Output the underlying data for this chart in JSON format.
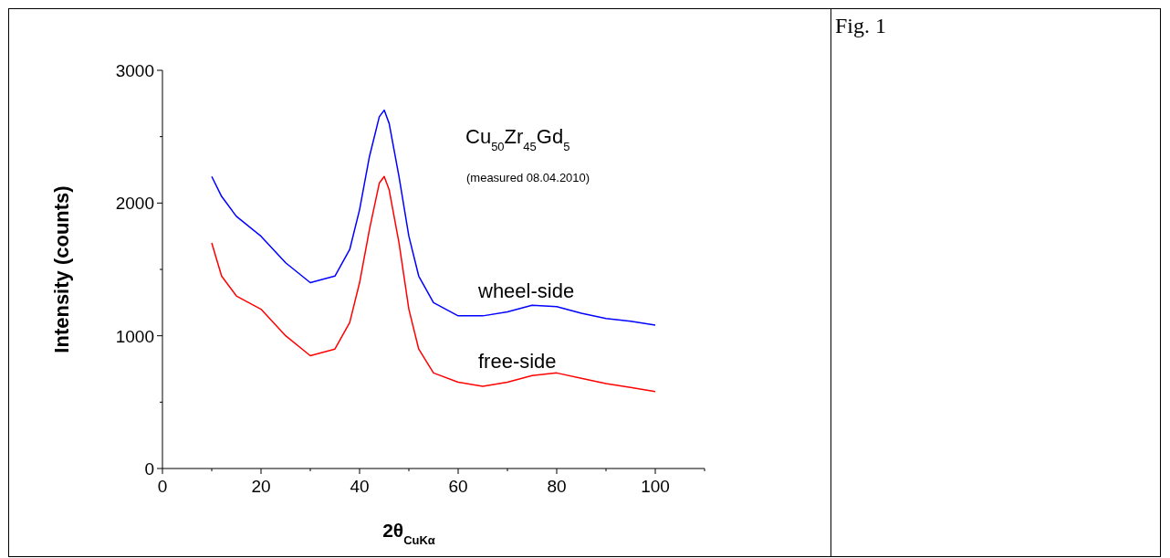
{
  "chart_data": {
    "type": "line",
    "xlabel": "2θ$_{CuKα}$",
    "ylabel": "Intensity (counts)",
    "xlim": [
      0,
      110
    ],
    "xticks": [
      0,
      20,
      40,
      60,
      80,
      100
    ],
    "ylim": [
      0,
      3000
    ],
    "yticks": [
      0,
      1000,
      2000,
      3000
    ],
    "grid": false,
    "line_style": "solid",
    "marker": "none",
    "x": [
      10,
      12,
      15,
      20,
      25,
      30,
      35,
      38,
      40,
      42,
      44,
      45,
      46,
      48,
      50,
      52,
      55,
      60,
      65,
      70,
      75,
      80,
      85,
      90,
      95,
      100
    ],
    "series": [
      {
        "name": "wheel-side",
        "color": "#0000ff",
        "values": [
          2200,
          2050,
          1900,
          1750,
          1550,
          1400,
          1450,
          1650,
          1950,
          2350,
          2650,
          2700,
          2600,
          2200,
          1750,
          1450,
          1250,
          1150,
          1150,
          1180,
          1230,
          1220,
          1170,
          1130,
          1110,
          1080
        ]
      },
      {
        "name": "free-side",
        "color": "#ff0000",
        "values": [
          1700,
          1450,
          1300,
          1200,
          1000,
          850,
          900,
          1100,
          1400,
          1800,
          2150,
          2200,
          2100,
          1700,
          1200,
          900,
          720,
          650,
          620,
          650,
          700,
          720,
          680,
          640,
          610,
          580
        ]
      }
    ],
    "annotations": [
      "Cu$_{50}$Zr$_{45}$Gd$_{5}$",
      "(measured 08.04.2010)",
      "Fig. 1"
    ]
  }
}
